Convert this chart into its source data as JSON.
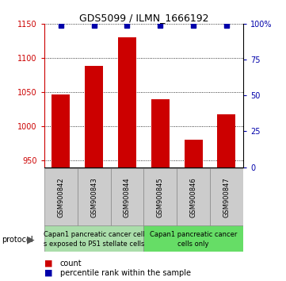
{
  "title": "GDS5099 / ILMN_1666192",
  "samples": [
    "GSM900842",
    "GSM900843",
    "GSM900844",
    "GSM900845",
    "GSM900846",
    "GSM900847"
  ],
  "counts": [
    1047,
    1089,
    1130,
    1040,
    980,
    1018
  ],
  "percentiles": [
    99,
    99,
    99,
    99,
    99,
    99
  ],
  "ylim_left": [
    940,
    1150
  ],
  "ylim_right": [
    0,
    100
  ],
  "yticks_left": [
    950,
    1000,
    1050,
    1100,
    1150
  ],
  "yticks_right": [
    0,
    25,
    50,
    75,
    100
  ],
  "bar_color": "#cc0000",
  "dot_color": "#0000aa",
  "protocol_group1_line1": "Capan1 pancreatic cancer cell",
  "protocol_group1_line2": "s exposed to PS1 stellate cells",
  "protocol_group2_line1": "Capan1 pancreatic cancer",
  "protocol_group2_line2": "cells only",
  "protocol_color1": "#aaddaa",
  "protocol_color2": "#66dd66",
  "sample_bg_color": "#cccccc",
  "legend_count_color": "#cc0000",
  "legend_pct_color": "#0000aa",
  "title_fontsize": 9,
  "axis_fontsize": 7,
  "tick_fontsize": 7,
  "sample_fontsize": 6,
  "proto_fontsize": 6,
  "legend_fontsize": 7
}
